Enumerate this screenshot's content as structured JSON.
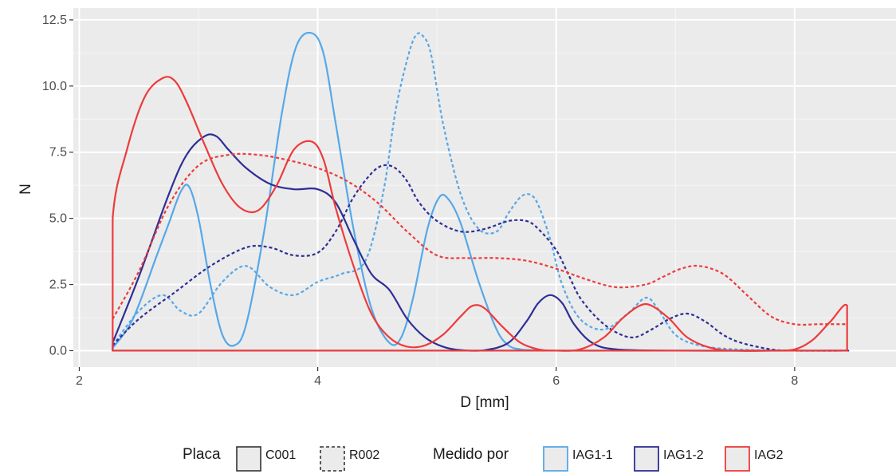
{
  "chart_data": {
    "type": "line",
    "title": "",
    "xlabel": "D [mm]",
    "ylabel": "N",
    "xlim": [
      1.95,
      8.85
    ],
    "ylim": [
      -0.62,
      12.95
    ],
    "x_ticks": [
      2,
      4,
      6,
      8
    ],
    "x_tick_labels": [
      "2",
      "4",
      "6",
      "8"
    ],
    "y_ticks": [
      0,
      2.5,
      5,
      7.5,
      10,
      12.5
    ],
    "y_tick_labels": [
      "0.0",
      "2.5",
      "5.0",
      "7.5",
      "10.0",
      "12.5"
    ],
    "grid": true,
    "legend_position": "bottom",
    "legend": {
      "placa_title": "Placa",
      "placa_items": [
        {
          "label": "C001",
          "linetype": "solid"
        },
        {
          "label": "R002",
          "linetype": "dashed"
        }
      ],
      "medido_title": "Medido por",
      "medido_items": [
        {
          "label": "IAG1-1",
          "color": "#56a8e8"
        },
        {
          "label": "IAG1-2",
          "color": "#2e2f95"
        },
        {
          "label": "IAG2",
          "color": "#ee3b3b"
        }
      ]
    },
    "series": [
      {
        "name": "IAG1-1 C001",
        "placa": "C001",
        "medido_por": "IAG1-1",
        "color": "#56a8e8",
        "linetype": "solid",
        "x": [
          2.28,
          2.45,
          2.65,
          2.75,
          2.85,
          2.92,
          3.0,
          3.1,
          3.2,
          3.3,
          3.4,
          3.55,
          3.7,
          3.82,
          3.95,
          4.05,
          4.15,
          4.3,
          4.45,
          4.6,
          4.7,
          4.8,
          4.92,
          5.02,
          5.1,
          5.2,
          5.35,
          5.5,
          5.6,
          5.7,
          5.8,
          6.0,
          6.5,
          7.0,
          8.0,
          8.45
        ],
        "y": [
          0.1,
          1.2,
          3.6,
          4.8,
          6.0,
          6.2,
          5.0,
          2.5,
          0.6,
          0.2,
          1.0,
          4.5,
          9.0,
          11.5,
          12.0,
          11.2,
          8.6,
          4.6,
          1.6,
          0.3,
          0.5,
          2.0,
          4.6,
          5.8,
          5.7,
          4.8,
          2.6,
          0.8,
          0.2,
          0.05,
          0.02,
          0.0,
          0.0,
          0.0,
          0.0,
          0.0
        ]
      },
      {
        "name": "IAG1-1 R002",
        "placa": "R002",
        "medido_por": "IAG1-1",
        "color": "#56a8e8",
        "linetype": "dashed",
        "x": [
          2.28,
          2.5,
          2.7,
          2.85,
          3.0,
          3.2,
          3.4,
          3.6,
          3.8,
          4.0,
          4.2,
          4.4,
          4.55,
          4.65,
          4.75,
          4.82,
          4.88,
          4.95,
          5.05,
          5.2,
          5.35,
          5.5,
          5.6,
          5.7,
          5.78,
          5.85,
          5.95,
          6.05,
          6.2,
          6.4,
          6.6,
          6.75,
          6.85,
          7.0,
          7.2,
          7.5,
          8.0,
          8.45
        ],
        "y": [
          0.2,
          1.5,
          2.1,
          1.5,
          1.4,
          2.6,
          3.2,
          2.4,
          2.1,
          2.6,
          2.9,
          3.4,
          6.0,
          9.0,
          11.0,
          11.9,
          11.9,
          11.2,
          8.6,
          5.9,
          4.6,
          4.5,
          5.2,
          5.8,
          5.9,
          5.5,
          4.2,
          2.5,
          1.2,
          0.8,
          1.4,
          2.0,
          1.6,
          0.6,
          0.2,
          0.05,
          0.0,
          0.0
        ]
      },
      {
        "name": "IAG1-2 C001",
        "placa": "C001",
        "medido_por": "IAG1-2",
        "color": "#2e2f95",
        "linetype": "solid",
        "x": [
          2.28,
          2.5,
          2.75,
          2.9,
          3.05,
          3.15,
          3.25,
          3.4,
          3.6,
          3.8,
          4.0,
          4.15,
          4.3,
          4.45,
          4.6,
          4.75,
          4.9,
          5.05,
          5.2,
          5.4,
          5.6,
          5.75,
          5.85,
          5.95,
          6.05,
          6.15,
          6.3,
          6.5,
          7.0,
          8.0,
          8.45
        ],
        "y": [
          0.3,
          2.8,
          5.9,
          7.4,
          8.1,
          8.1,
          7.6,
          6.9,
          6.3,
          6.1,
          6.1,
          5.6,
          4.2,
          2.9,
          2.3,
          1.2,
          0.5,
          0.15,
          0.02,
          0.02,
          0.3,
          1.1,
          1.8,
          2.1,
          1.8,
          1.0,
          0.3,
          0.05,
          0.0,
          0.0,
          0.0
        ]
      },
      {
        "name": "IAG1-2 R002",
        "placa": "R002",
        "medido_por": "IAG1-2",
        "color": "#2e2f95",
        "linetype": "dashed",
        "x": [
          2.28,
          2.5,
          2.8,
          3.1,
          3.4,
          3.6,
          3.8,
          4.0,
          4.15,
          4.3,
          4.45,
          4.55,
          4.65,
          4.75,
          4.85,
          5.0,
          5.2,
          5.4,
          5.6,
          5.75,
          5.85,
          6.0,
          6.1,
          6.2,
          6.35,
          6.5,
          6.65,
          6.8,
          6.95,
          7.1,
          7.25,
          7.4,
          7.55,
          7.8,
          8.0,
          8.45
        ],
        "y": [
          0.2,
          1.2,
          2.2,
          3.2,
          3.9,
          3.9,
          3.6,
          3.7,
          4.5,
          5.8,
          6.7,
          7.0,
          6.9,
          6.4,
          5.6,
          4.9,
          4.5,
          4.6,
          4.9,
          4.9,
          4.6,
          3.8,
          2.9,
          2.0,
          1.2,
          0.7,
          0.5,
          0.8,
          1.2,
          1.4,
          1.1,
          0.6,
          0.3,
          0.05,
          0.0,
          0.0
        ]
      },
      {
        "name": "IAG2 C001",
        "placa": "C001",
        "medido_por": "IAG2",
        "color": "#ee3b3b",
        "linetype": "solid",
        "x": [
          2.28,
          2.28,
          2.4,
          2.55,
          2.7,
          2.8,
          2.9,
          3.05,
          3.2,
          3.35,
          3.5,
          3.65,
          3.8,
          3.95,
          4.05,
          4.15,
          4.3,
          4.45,
          4.6,
          4.75,
          4.9,
          5.05,
          5.2,
          5.3,
          5.4,
          5.55,
          5.7,
          5.85,
          6.0,
          6.2,
          6.4,
          6.55,
          6.7,
          6.8,
          6.95,
          7.1,
          7.3,
          7.5,
          7.8,
          8.0,
          8.15,
          8.3,
          8.44,
          8.44
        ],
        "y": [
          0.0,
          5.0,
          7.6,
          9.6,
          10.3,
          10.2,
          9.4,
          7.8,
          6.3,
          5.4,
          5.3,
          6.2,
          7.6,
          7.9,
          7.2,
          5.4,
          3.2,
          1.4,
          0.5,
          0.15,
          0.2,
          0.6,
          1.3,
          1.7,
          1.6,
          0.9,
          0.3,
          0.05,
          0.0,
          0.05,
          0.5,
          1.2,
          1.7,
          1.7,
          1.2,
          0.5,
          0.1,
          0.0,
          0.0,
          0.05,
          0.4,
          1.1,
          1.7,
          0.0
        ]
      },
      {
        "name": "IAG2 R002",
        "placa": "R002",
        "medido_por": "IAG2",
        "color": "#ee3b3b",
        "linetype": "dashed",
        "x": [
          2.28,
          2.5,
          2.75,
          3.0,
          3.25,
          3.5,
          3.75,
          4.0,
          4.25,
          4.5,
          4.75,
          5.0,
          5.25,
          5.5,
          5.75,
          6.0,
          6.25,
          6.5,
          6.75,
          6.9,
          7.05,
          7.2,
          7.4,
          7.6,
          7.8,
          8.0,
          8.2,
          8.44
        ],
        "y": [
          1.2,
          3.0,
          5.5,
          7.0,
          7.4,
          7.4,
          7.2,
          6.9,
          6.4,
          5.6,
          4.5,
          3.6,
          3.5,
          3.5,
          3.4,
          3.1,
          2.7,
          2.4,
          2.5,
          2.8,
          3.1,
          3.2,
          2.9,
          2.1,
          1.3,
          1.0,
          1.0,
          1.0
        ]
      }
    ]
  }
}
